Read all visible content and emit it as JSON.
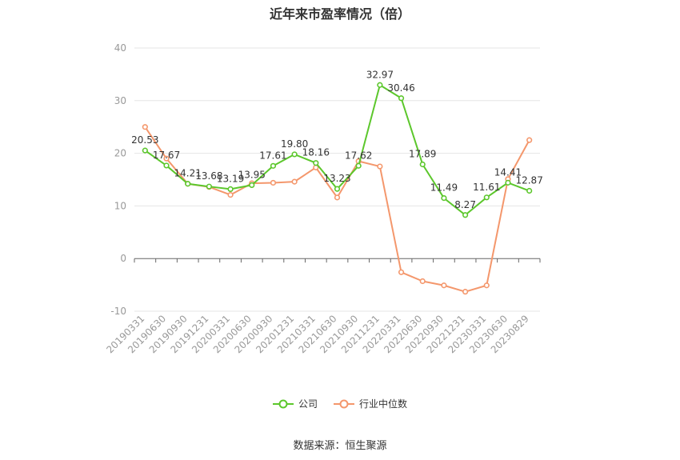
{
  "chart_data": {
    "type": "line",
    "title": "近年来市盈率情况（倍）",
    "categories": [
      "20190331",
      "20190630",
      "20190930",
      "20191231",
      "20200331",
      "20200630",
      "20200930",
      "20201231",
      "20210331",
      "20210630",
      "20210930",
      "20211231",
      "20220331",
      "20220630",
      "20220930",
      "20221231",
      "20230331",
      "20230630",
      "20230829"
    ],
    "series": [
      {
        "name": "公司",
        "color": "#5cc72c",
        "values": [
          20.53,
          17.67,
          14.21,
          13.68,
          13.19,
          13.95,
          17.61,
          19.8,
          18.16,
          13.23,
          17.62,
          32.97,
          30.46,
          17.89,
          11.49,
          8.27,
          11.61,
          14.41,
          12.87
        ],
        "labels": [
          "20.53",
          "17.67",
          "14.21",
          "13.68",
          "13.19",
          "13.95",
          "17.61",
          "19.80",
          "18.16",
          "13.23",
          "17.62",
          "32.97",
          "30.46",
          "17.89",
          "11.49",
          "8.27",
          "11.61",
          "14.41",
          "12.87"
        ]
      },
      {
        "name": "行业中位数",
        "color": "#f4976c",
        "values": [
          25.0,
          19.0,
          14.2,
          13.6,
          12.1,
          14.3,
          14.4,
          14.6,
          17.3,
          11.6,
          18.5,
          17.5,
          -2.6,
          -4.3,
          -5.1,
          -6.3,
          -5.1,
          15.1,
          22.5
        ]
      }
    ],
    "ylim": [
      -10,
      40
    ],
    "yticks": [
      -10,
      0,
      10,
      20,
      30,
      40
    ],
    "grid": true,
    "legend": "bottom-center"
  },
  "source": "数据来源：恒生聚源"
}
